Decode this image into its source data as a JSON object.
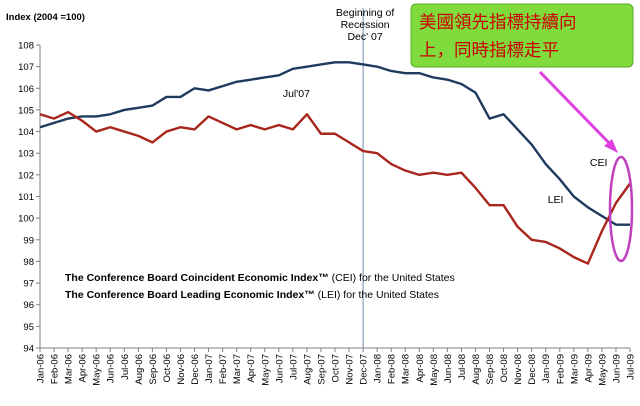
{
  "chart_data": {
    "type": "line",
    "ylabel": "Index (2004 =100)",
    "ylim": [
      94,
      108
    ],
    "yticks": [
      94,
      95,
      96,
      97,
      98,
      99,
      100,
      101,
      102,
      103,
      104,
      105,
      106,
      107,
      108
    ],
    "categories": [
      "Jan-06",
      "Feb-06",
      "Mar-06",
      "Apr-06",
      "May-06",
      "Jun-06",
      "Jul-06",
      "Aug-06",
      "Sep-06",
      "Oct-06",
      "Nov-06",
      "Dec-06",
      "Jan-07",
      "Feb-07",
      "Mar-07",
      "Apr-07",
      "May-07",
      "Jun-07",
      "Jul-07",
      "Aug-07",
      "Sep-07",
      "Oct-07",
      "Nov-07",
      "Dec-07",
      "Jan-08",
      "Feb-08",
      "Mar-08",
      "Apr-08",
      "May-08",
      "Jun-08",
      "Jul-08",
      "Aug-08",
      "Sep-08",
      "Oct-08",
      "Nov-08",
      "Dec-08",
      "Jan-09",
      "Feb-09",
      "Mar-09",
      "Apr-09",
      "May-09",
      "Jun-09",
      "Jul-09"
    ],
    "series": [
      {
        "name": "CEI",
        "color": "#1f3a5f",
        "values": [
          104.2,
          104.4,
          104.6,
          104.7,
          104.7,
          104.8,
          105.0,
          105.1,
          105.2,
          105.6,
          105.6,
          106.0,
          105.9,
          106.1,
          106.3,
          106.4,
          106.5,
          106.6,
          106.9,
          107.0,
          107.1,
          107.2,
          107.2,
          107.1,
          107.0,
          106.8,
          106.7,
          106.7,
          106.5,
          106.4,
          106.2,
          105.8,
          104.6,
          104.8,
          104.1,
          103.4,
          102.5,
          101.8,
          101.0,
          100.5,
          100.1,
          99.7,
          99.7
        ]
      },
      {
        "name": "LEI",
        "color": "#a8261b",
        "values": [
          104.8,
          104.6,
          104.9,
          104.5,
          104.0,
          104.2,
          104.0,
          103.8,
          103.5,
          104.0,
          104.2,
          104.1,
          104.7,
          104.4,
          104.1,
          104.3,
          104.1,
          104.3,
          104.1,
          104.8,
          103.9,
          103.9,
          103.5,
          103.1,
          103.0,
          102.5,
          102.2,
          102.0,
          102.1,
          102.0,
          102.1,
          101.4,
          100.6,
          100.6,
          99.6,
          99.0,
          98.9,
          98.6,
          98.2,
          97.9,
          99.4,
          100.7,
          101.6
        ]
      }
    ],
    "annotations": {
      "recession": "Beginning of Recession Dec' 07",
      "jul07": "Jul'07",
      "cei_label": "CEI",
      "lei_label": "LEI"
    },
    "notes": {
      "cei_bold": "The Conference Board Coincident Economic Index™",
      "cei_rest": " (CEI) for the United States",
      "lei_bold": "The Conference Board Leading Economic Index™",
      "lei_rest": " (LEI) for the United States"
    },
    "grid": false,
    "callout": {
      "line1": "美國領先指標持續向",
      "line2": "上，同時指標走平"
    },
    "colors": {
      "callout_bg": "#7fdc3c",
      "arrow": "#e040e0",
      "ellipse": "#c040c0",
      "recession_line": "#6f8fb0"
    }
  }
}
